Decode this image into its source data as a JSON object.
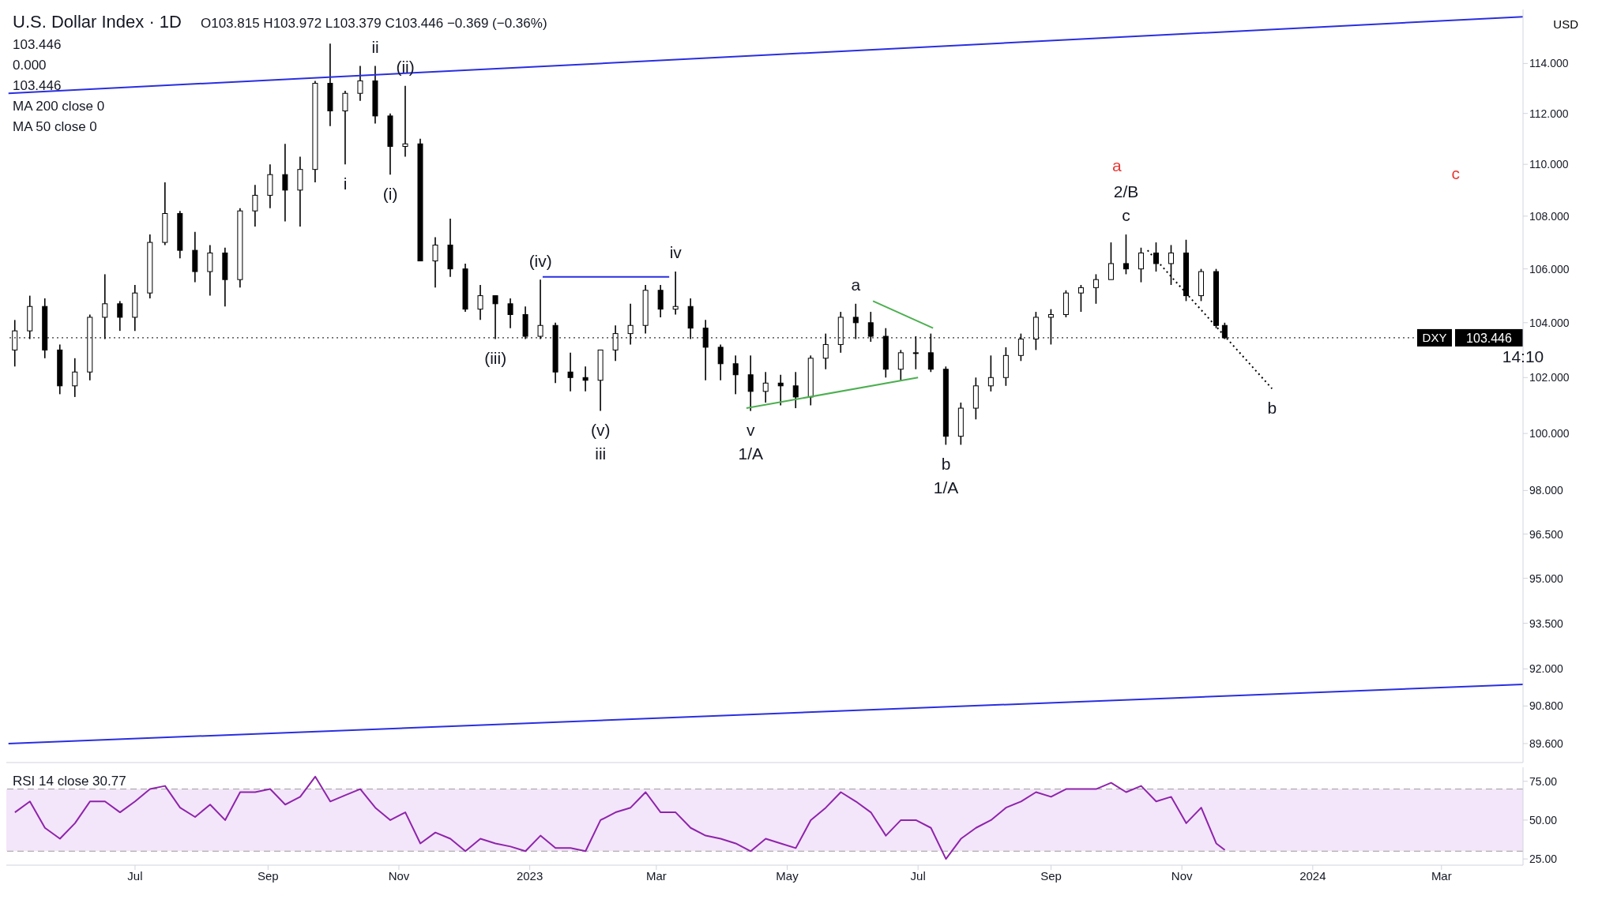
{
  "chart_data": [
    {
      "type": "candlestick",
      "title": "U.S. Dollar Index · 1D",
      "ylabel": "USD",
      "log": true,
      "tick_labels": "y",
      "annotations": [
        "O103.815 H103.972 L103.379 C103.446 −0.369 (−0.36%)",
        "103.446",
        "0.000",
        "103.446",
        "MA 200 close 0",
        "MA 50 close 0",
        "a",
        "c",
        {
          "text": "ii",
          "x": "2022-10-21",
          "y": 113.9
        },
        {
          "text": "(ii)",
          "x": "2022-11-04",
          "y": 113.1
        },
        {
          "text": "i",
          "x": "2022-10-07",
          "y": 110.0
        },
        {
          "text": "(i)",
          "x": "2022-10-28",
          "y": 109.6
        },
        {
          "text": "(iv)",
          "x": "2023-01-06",
          "y": 105.6
        },
        {
          "text": "iv",
          "x": "2023-03-10",
          "y": 105.9
        },
        {
          "text": "(iii)",
          "x": "2022-12-16",
          "y": 103.4
        },
        {
          "text": "(v)",
          "x": "2023-02-03",
          "y": 100.8
        },
        {
          "text": "iii",
          "x": "2023-02-03",
          "y": 100.8
        },
        {
          "text": "v",
          "x": "2023-04-14",
          "y": 100.8
        },
        {
          "text": "1/A",
          "x": "2023-04-14",
          "y": 100.8
        },
        {
          "text": "a",
          "x": "2023-06-02",
          "y": 104.7
        },
        {
          "text": "b",
          "x": "2023-07-14",
          "y": 99.6
        },
        {
          "text": "1/A",
          "x": "2023-07-14",
          "y": 99.6
        },
        {
          "text": "c",
          "x": "2023-10-06",
          "y": 107.3
        },
        {
          "text": "2/B",
          "x": "2023-10-06",
          "y": 107.3
        },
        {
          "text": "b",
          "x": "2023-12-13",
          "y": 101.6
        },
        {
          "text": "14:10",
          "x": "2024-04-08",
          "y": 103.446
        }
      ],
      "xlim": [
        "2022-05-02",
        "2024-04-08"
      ],
      "ylim": [
        89,
        116.2
      ],
      "yticks": [
        {
          "value": 114,
          "label": "114.000"
        },
        {
          "value": 112,
          "label": "112.000"
        },
        {
          "value": 110,
          "label": "110.000"
        },
        {
          "value": 108,
          "label": "108.000"
        },
        {
          "value": 106,
          "label": "106.000"
        },
        {
          "value": 104,
          "label": "104.000"
        },
        {
          "value": 102,
          "label": "102.000"
        },
        {
          "value": 100,
          "label": "100.000"
        },
        {
          "value": 98,
          "label": "98.000"
        },
        {
          "value": 96.5,
          "label": "96.500"
        },
        {
          "value": 95,
          "label": "95.000"
        },
        {
          "value": 93.5,
          "label": "93.500"
        },
        {
          "value": 92,
          "label": "92.000"
        },
        {
          "value": 90.8,
          "label": "90.800"
        },
        {
          "value": 89.6,
          "label": "89.600"
        }
      ],
      "ref_lines": [
        {
          "axis": "y",
          "value": 103.446,
          "label": "DXY",
          "color": "#000000",
          "line_style": "dotted"
        }
      ],
      "color": "#000000",
      "x": [
        "2022-05-06",
        "2022-05-13",
        "2022-05-20",
        "2022-05-27",
        "2022-06-03",
        "2022-06-10",
        "2022-06-17",
        "2022-06-24",
        "2022-07-01",
        "2022-07-08",
        "2022-07-15",
        "2022-07-22",
        "2022-07-29",
        "2022-08-05",
        "2022-08-12",
        "2022-08-19",
        "2022-08-26",
        "2022-09-02",
        "2022-09-09",
        "2022-09-16",
        "2022-09-23",
        "2022-09-30",
        "2022-10-07",
        "2022-10-14",
        "2022-10-21",
        "2022-10-28",
        "2022-11-04",
        "2022-11-11",
        "2022-11-18",
        "2022-11-25",
        "2022-12-02",
        "2022-12-09",
        "2022-12-16",
        "2022-12-23",
        "2022-12-30",
        "2023-01-06",
        "2023-01-13",
        "2023-01-20",
        "2023-01-27",
        "2023-02-03",
        "2023-02-10",
        "2023-02-17",
        "2023-02-24",
        "2023-03-03",
        "2023-03-10",
        "2023-03-17",
        "2023-03-24",
        "2023-03-31",
        "2023-04-07",
        "2023-04-14",
        "2023-04-21",
        "2023-04-28",
        "2023-05-05",
        "2023-05-12",
        "2023-05-19",
        "2023-05-26",
        "2023-06-02",
        "2023-06-09",
        "2023-06-16",
        "2023-06-23",
        "2023-06-30",
        "2023-07-07",
        "2023-07-14",
        "2023-07-21",
        "2023-07-28",
        "2023-08-04",
        "2023-08-11",
        "2023-08-18",
        "2023-08-25",
        "2023-09-01",
        "2023-09-08",
        "2023-09-15",
        "2023-09-22",
        "2023-09-29",
        "2023-10-06",
        "2023-10-13",
        "2023-10-20",
        "2023-10-27",
        "2023-11-03",
        "2023-11-10",
        "2023-11-17",
        "2023-11-21"
      ],
      "ohlc": [
        [
          103.0,
          104.1,
          102.4,
          103.7
        ],
        [
          103.7,
          105.0,
          103.4,
          104.6
        ],
        [
          104.6,
          104.9,
          102.7,
          103.0
        ],
        [
          103.0,
          103.2,
          101.4,
          101.7
        ],
        [
          101.7,
          102.7,
          101.3,
          102.2
        ],
        [
          102.2,
          104.3,
          101.9,
          104.2
        ],
        [
          104.2,
          105.8,
          103.4,
          104.7
        ],
        [
          104.7,
          104.8,
          103.7,
          104.2
        ],
        [
          104.2,
          105.4,
          103.7,
          105.1
        ],
        [
          105.1,
          107.3,
          104.9,
          107.0
        ],
        [
          107.0,
          109.3,
          106.9,
          108.1
        ],
        [
          108.1,
          108.2,
          106.4,
          106.7
        ],
        [
          106.7,
          107.4,
          105.5,
          105.9
        ],
        [
          105.9,
          106.9,
          105.0,
          106.6
        ],
        [
          106.6,
          106.8,
          104.6,
          105.6
        ],
        [
          105.6,
          108.3,
          105.3,
          108.2
        ],
        [
          108.2,
          109.2,
          107.6,
          108.8
        ],
        [
          108.8,
          110.0,
          108.3,
          109.6
        ],
        [
          109.6,
          110.8,
          107.8,
          109.0
        ],
        [
          109.0,
          110.3,
          107.6,
          109.8
        ],
        [
          109.8,
          113.3,
          109.3,
          113.2
        ],
        [
          113.2,
          114.8,
          111.5,
          112.1
        ],
        [
          112.1,
          112.9,
          110.0,
          112.8
        ],
        [
          112.8,
          113.9,
          112.5,
          113.3
        ],
        [
          113.3,
          113.9,
          111.6,
          111.9
        ],
        [
          111.9,
          112.0,
          109.6,
          110.7
        ],
        [
          110.7,
          113.1,
          110.3,
          110.8
        ],
        [
          110.8,
          111.0,
          106.3,
          106.3
        ],
        [
          106.3,
          107.2,
          105.3,
          106.9
        ],
        [
          106.9,
          107.9,
          105.7,
          106.0
        ],
        [
          106.0,
          106.2,
          104.4,
          104.5
        ],
        [
          104.5,
          105.4,
          104.1,
          105.0
        ],
        [
          105.0,
          105.0,
          103.4,
          104.7
        ],
        [
          104.7,
          104.9,
          103.8,
          104.3
        ],
        [
          104.3,
          104.6,
          103.4,
          103.5
        ],
        [
          103.5,
          105.6,
          103.4,
          103.9
        ],
        [
          103.9,
          104.0,
          101.8,
          102.2
        ],
        [
          102.2,
          102.9,
          101.5,
          102.0
        ],
        [
          102.0,
          102.4,
          101.5,
          101.9
        ],
        [
          101.9,
          103.0,
          100.8,
          103.0
        ],
        [
          103.0,
          103.9,
          102.6,
          103.6
        ],
        [
          103.6,
          104.7,
          103.2,
          103.9
        ],
        [
          103.9,
          105.4,
          103.6,
          105.2
        ],
        [
          105.2,
          105.4,
          104.2,
          104.5
        ],
        [
          104.5,
          105.9,
          104.3,
          104.6
        ],
        [
          104.6,
          104.9,
          103.4,
          103.8
        ],
        [
          103.8,
          104.1,
          101.9,
          103.1
        ],
        [
          103.1,
          103.2,
          101.9,
          102.5
        ],
        [
          102.5,
          102.8,
          101.4,
          102.1
        ],
        [
          102.1,
          102.8,
          100.8,
          101.5
        ],
        [
          101.5,
          102.2,
          101.1,
          101.8
        ],
        [
          101.8,
          102.1,
          101.0,
          101.7
        ],
        [
          101.7,
          102.2,
          100.9,
          101.3
        ],
        [
          101.3,
          102.8,
          101.0,
          102.7
        ],
        [
          102.7,
          103.6,
          102.3,
          103.2
        ],
        [
          103.2,
          104.4,
          102.9,
          104.2
        ],
        [
          104.2,
          104.7,
          103.4,
          104.0
        ],
        [
          104.0,
          104.4,
          103.3,
          103.5
        ],
        [
          103.5,
          103.8,
          102.0,
          102.3
        ],
        [
          102.3,
          103.0,
          101.9,
          102.9
        ],
        [
          102.9,
          103.5,
          102.3,
          102.9
        ],
        [
          102.9,
          103.6,
          102.2,
          102.3
        ],
        [
          102.3,
          102.4,
          99.6,
          99.9
        ],
        [
          99.9,
          101.1,
          99.6,
          100.9
        ],
        [
          100.9,
          102.0,
          100.5,
          101.7
        ],
        [
          101.7,
          102.8,
          101.5,
          102.0
        ],
        [
          102.0,
          103.1,
          101.7,
          102.8
        ],
        [
          102.8,
          103.6,
          102.6,
          103.4
        ],
        [
          103.4,
          104.4,
          103.0,
          104.2
        ],
        [
          104.2,
          104.5,
          103.2,
          104.3
        ],
        [
          104.3,
          105.2,
          104.2,
          105.1
        ],
        [
          105.1,
          105.4,
          104.4,
          105.3
        ],
        [
          105.3,
          105.8,
          104.7,
          105.6
        ],
        [
          105.6,
          107.0,
          105.6,
          106.2
        ],
        [
          106.2,
          107.3,
          105.8,
          106.0
        ],
        [
          106.0,
          106.8,
          105.5,
          106.6
        ],
        [
          106.6,
          107.0,
          105.9,
          106.2
        ],
        [
          106.2,
          106.9,
          105.4,
          106.6
        ],
        [
          106.6,
          107.1,
          104.8,
          105.0
        ],
        [
          105.0,
          106.0,
          104.8,
          105.9
        ],
        [
          105.9,
          106.0,
          103.8,
          103.9
        ],
        [
          103.9,
          104.0,
          103.4,
          103.446
        ]
      ],
      "series": [
        {
          "type": "line",
          "color": "#2a2ee0",
          "line_style": "solid",
          "x": [
            "2022-05-03",
            "2024-04-08"
          ],
          "values": [
            112.8,
            115.9
          ]
        },
        {
          "type": "line",
          "color": "#2a2ee0",
          "line_style": "solid",
          "x": [
            "2022-05-03",
            "2024-04-08"
          ],
          "values": [
            89.6,
            91.5
          ]
        },
        {
          "type": "line",
          "color": "#2a2ee0",
          "line_style": "solid",
          "x": [
            "2023-01-07",
            "2023-03-07"
          ],
          "values": [
            105.7,
            105.7
          ]
        },
        {
          "type": "line",
          "color": "#4caf50",
          "line_style": "solid",
          "x": [
            "2023-06-10",
            "2023-07-08"
          ],
          "values": [
            104.8,
            103.8
          ]
        },
        {
          "type": "line",
          "color": "#4caf50",
          "line_style": "solid",
          "x": [
            "2023-04-12",
            "2023-07-01"
          ],
          "values": [
            100.9,
            102.0
          ]
        },
        {
          "type": "line",
          "color": "#000000",
          "line_style": "dotted",
          "x": [
            "2023-10-16",
            "2023-12-13"
          ],
          "values": [
            106.7,
            101.6
          ]
        }
      ]
    },
    {
      "type": "line",
      "annotations": [
        "RSI 14 close 30.77"
      ],
      "xlim": [
        "2022-05-02",
        "2024-04-08"
      ],
      "xticks": [
        {
          "value": "2022-07-01",
          "label": "Jul"
        },
        {
          "value": "2022-09-01",
          "label": "Sep"
        },
        {
          "value": "2022-11-01",
          "label": "Nov"
        },
        {
          "value": "2023-01-01",
          "label": "2023"
        },
        {
          "value": "2023-03-01",
          "label": "Mar"
        },
        {
          "value": "2023-05-01",
          "label": "May"
        },
        {
          "value": "2023-07-01",
          "label": "Jul"
        },
        {
          "value": "2023-09-01",
          "label": "Sep"
        },
        {
          "value": "2023-11-01",
          "label": "Nov"
        },
        {
          "value": "2024-01-01",
          "label": "2024"
        },
        {
          "value": "2024-03-01",
          "label": "Mar"
        }
      ],
      "ylim": [
        21,
        84
      ],
      "yticks": [
        {
          "value": 25,
          "label": "25.00"
        },
        {
          "value": 50,
          "label": "50.00"
        },
        {
          "value": 75,
          "label": "75.00"
        }
      ],
      "bands": [
        {
          "axis": "y",
          "from": 30,
          "to": 70,
          "color": "#f3e5fa"
        }
      ],
      "ref_lines": [
        {
          "axis": "y",
          "value": 70,
          "color": "#9e9e9e",
          "line_style": "dashed"
        },
        {
          "axis": "y",
          "value": 30,
          "color": "#9e9e9e",
          "line_style": "dashed"
        }
      ],
      "x": [
        "2022-05-06",
        "2022-05-13",
        "2022-05-20",
        "2022-05-27",
        "2022-06-03",
        "2022-06-10",
        "2022-06-17",
        "2022-06-24",
        "2022-07-01",
        "2022-07-08",
        "2022-07-15",
        "2022-07-22",
        "2022-07-29",
        "2022-08-05",
        "2022-08-12",
        "2022-08-19",
        "2022-08-26",
        "2022-09-02",
        "2022-09-09",
        "2022-09-16",
        "2022-09-23",
        "2022-09-30",
        "2022-10-07",
        "2022-10-14",
        "2022-10-21",
        "2022-10-28",
        "2022-11-04",
        "2022-11-11",
        "2022-11-18",
        "2022-11-25",
        "2022-12-02",
        "2022-12-09",
        "2022-12-16",
        "2022-12-23",
        "2022-12-30",
        "2023-01-06",
        "2023-01-13",
        "2023-01-20",
        "2023-01-27",
        "2023-02-03",
        "2023-02-10",
        "2023-02-17",
        "2023-02-24",
        "2023-03-03",
        "2023-03-10",
        "2023-03-17",
        "2023-03-24",
        "2023-03-31",
        "2023-04-07",
        "2023-04-14",
        "2023-04-21",
        "2023-04-28",
        "2023-05-05",
        "2023-05-12",
        "2023-05-19",
        "2023-05-26",
        "2023-06-02",
        "2023-06-09",
        "2023-06-16",
        "2023-06-23",
        "2023-06-30",
        "2023-07-07",
        "2023-07-14",
        "2023-07-21",
        "2023-07-28",
        "2023-08-04",
        "2023-08-11",
        "2023-08-18",
        "2023-08-25",
        "2023-09-01",
        "2023-09-08",
        "2023-09-15",
        "2023-09-22",
        "2023-09-29",
        "2023-10-06",
        "2023-10-13",
        "2023-10-20",
        "2023-10-27",
        "2023-11-03",
        "2023-11-10",
        "2023-11-17",
        "2023-11-21"
      ],
      "series": [
        {
          "color": "#8e24aa",
          "line_style": "solid",
          "values": [
            55,
            62,
            45,
            38,
            48,
            62,
            62,
            55,
            62,
            70,
            72,
            58,
            52,
            60,
            50,
            68,
            68,
            70,
            60,
            65,
            78,
            62,
            66,
            70,
            58,
            50,
            55,
            35,
            42,
            38,
            30,
            38,
            35,
            33,
            30,
            40,
            32,
            32,
            30,
            50,
            55,
            58,
            68,
            55,
            55,
            45,
            40,
            38,
            35,
            30,
            38,
            35,
            32,
            50,
            58,
            68,
            62,
            55,
            40,
            50,
            50,
            45,
            25,
            38,
            45,
            50,
            58,
            62,
            68,
            65,
            70,
            70,
            70,
            74,
            68,
            72,
            62,
            65,
            48,
            58,
            35,
            30.77
          ]
        }
      ]
    }
  ]
}
